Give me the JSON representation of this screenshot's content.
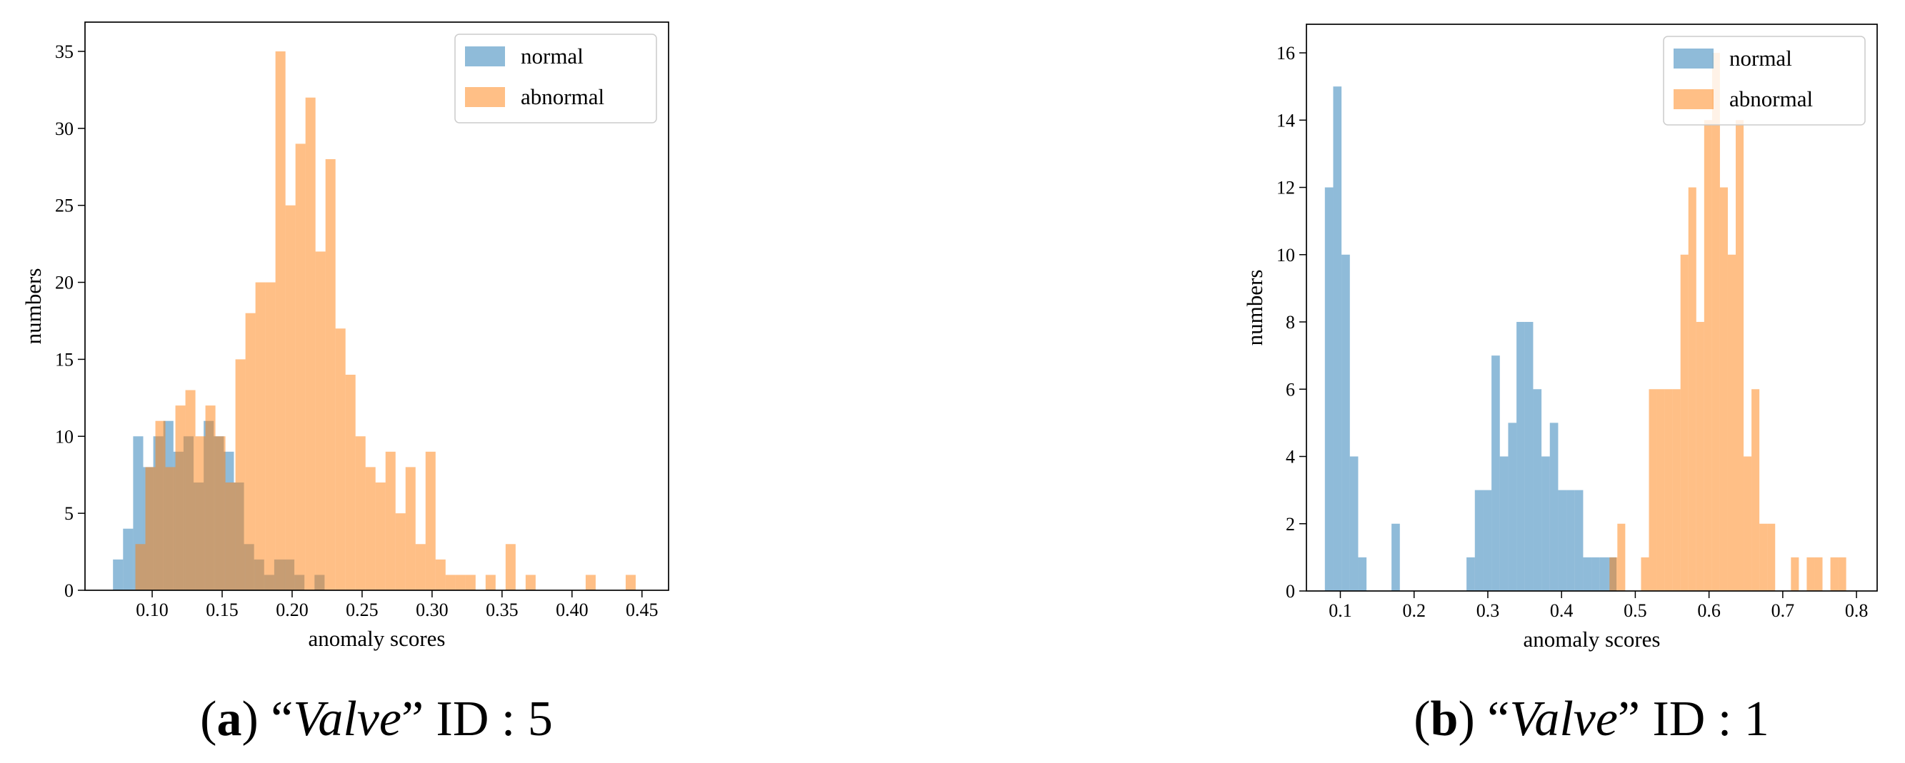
{
  "chart_data": [
    {
      "type": "histogram",
      "caption": [
        "(",
        "a",
        ") “",
        "Valve",
        "” ID : 5"
      ],
      "x_label": "anomaly scores",
      "y_label": "numbers",
      "xlim": [
        0.052,
        0.469
      ],
      "ylim": [
        0,
        36.9
      ],
      "xticks": [
        {
          "value": 0.1,
          "label": "0.10"
        },
        {
          "value": 0.15,
          "label": "0.15"
        },
        {
          "value": 0.2,
          "label": "0.20"
        },
        {
          "value": 0.25,
          "label": "0.25"
        },
        {
          "value": 0.3,
          "label": "0.30"
        },
        {
          "value": 0.35,
          "label": "0.35"
        },
        {
          "value": 0.4,
          "label": "0.40"
        },
        {
          "value": 0.45,
          "label": "0.45"
        }
      ],
      "yticks": [
        0,
        5,
        10,
        15,
        20,
        25,
        30,
        35
      ],
      "legend": "upper right",
      "series": [
        {
          "name": "normal",
          "color": "#1f77b4",
          "alpha": 0.5,
          "bins": [
            0.072,
            0.0792,
            0.0864,
            0.0936,
            0.1008,
            0.108,
            0.1152,
            0.1224,
            0.1296,
            0.1368,
            0.144,
            0.1512,
            0.1584,
            0.1656,
            0.1728,
            0.18,
            0.1872,
            0.1944,
            0.2016,
            0.2088,
            0.216,
            0.2232
          ],
          "values": [
            2,
            4,
            10,
            8,
            10,
            11,
            9,
            10,
            7,
            11,
            10,
            9,
            7,
            3,
            2,
            1,
            2,
            2,
            1,
            0,
            1
          ]
        },
        {
          "name": "abnormal",
          "color": "#ff7f0e",
          "alpha": 0.5,
          "bins": [
            0.088,
            0.09515,
            0.1023,
            0.10945,
            0.1166,
            0.12375,
            0.1309,
            0.13805,
            0.1452,
            0.15235,
            0.1595,
            0.16665,
            0.1738,
            0.18095,
            0.1881,
            0.19525,
            0.2024,
            0.20955,
            0.2167,
            0.22385,
            0.231,
            0.23815,
            0.2453,
            0.25245,
            0.2596,
            0.26675,
            0.2739,
            0.28105,
            0.2882,
            0.29535,
            0.3025,
            0.30965,
            0.3168,
            0.32395,
            0.3311,
            0.33825,
            0.3454,
            0.35255,
            0.3597,
            0.36685,
            0.374,
            0.38115,
            0.3883,
            0.39545,
            0.4026,
            0.40975,
            0.4169,
            0.42405,
            0.4312,
            0.43835,
            0.4455
          ],
          "values": [
            3,
            8,
            11,
            8,
            12,
            13,
            10,
            12,
            10,
            7,
            15,
            18,
            20,
            20,
            35,
            25,
            29,
            32,
            22,
            28,
            17,
            14,
            10,
            8,
            7,
            9,
            5,
            8,
            3,
            9,
            2,
            1,
            1,
            1,
            0,
            1,
            0,
            3,
            0,
            1,
            0,
            0,
            0,
            0,
            0,
            1,
            0,
            0,
            0,
            1
          ]
        }
      ]
    },
    {
      "type": "histogram",
      "caption": [
        "(",
        "b",
        ") “",
        "Valve",
        "” ID : 1"
      ],
      "x_label": "anomaly scores",
      "y_label": "numbers",
      "xlim": [
        0.054,
        0.828
      ],
      "ylim": [
        0,
        16.85
      ],
      "xticks": [
        0.1,
        0.2,
        0.3,
        0.4,
        0.5,
        0.6,
        0.7,
        0.8
      ],
      "yticks": [
        0,
        2,
        4,
        6,
        8,
        10,
        12,
        14,
        16
      ],
      "legend": "upper right",
      "series": [
        {
          "name": "normal",
          "color": "#1f77b4",
          "alpha": 0.5,
          "bins": [
            0.079,
            0.0903,
            0.1016,
            0.1129,
            0.1242,
            0.1355,
            0.1468,
            0.1581,
            0.1694,
            0.1807,
            0.192,
            0.2033,
            0.2146,
            0.2259,
            0.2372,
            0.2485,
            0.2598,
            0.2711,
            0.2824,
            0.2937,
            0.305,
            0.3163,
            0.3276,
            0.3389,
            0.3502,
            0.3615,
            0.3728,
            0.3841,
            0.3954,
            0.4067,
            0.418,
            0.4293,
            0.4406,
            0.4519,
            0.4632,
            0.4745
          ],
          "values": [
            12,
            15,
            10,
            4,
            1,
            0,
            0,
            0,
            2,
            0,
            0,
            0,
            0,
            0,
            0,
            0,
            0,
            1,
            3,
            3,
            7,
            4,
            5,
            8,
            8,
            6,
            4,
            5,
            3,
            3,
            3,
            1,
            1,
            1,
            1
          ]
        },
        {
          "name": "abnormal",
          "color": "#ff7f0e",
          "alpha": 0.5,
          "bins": [
            0.465,
            0.4757,
            0.4864,
            0.4971,
            0.5078,
            0.5185,
            0.5292,
            0.5399,
            0.5506,
            0.5613,
            0.572,
            0.5827,
            0.5934,
            0.6041,
            0.6148,
            0.6255,
            0.6362,
            0.6469,
            0.6576,
            0.6683,
            0.679,
            0.6897,
            0.7004,
            0.7111,
            0.7218,
            0.7325,
            0.7432,
            0.7539,
            0.7646,
            0.7753,
            0.786
          ],
          "values": [
            1,
            2,
            0,
            0,
            1,
            6,
            6,
            6,
            6,
            10,
            12,
            8,
            14,
            16,
            12,
            10,
            14,
            4,
            6,
            2,
            2,
            0,
            0,
            1,
            0,
            1,
            1,
            0,
            1,
            1
          ]
        }
      ]
    }
  ]
}
